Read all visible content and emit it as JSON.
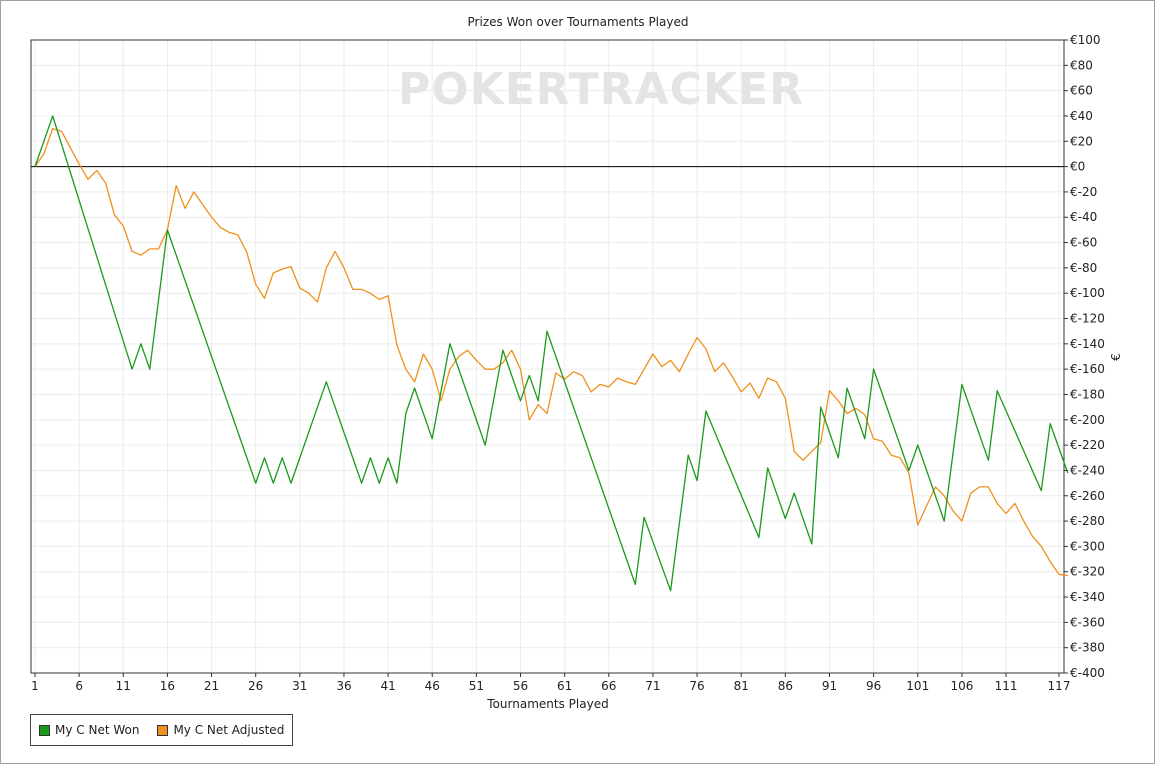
{
  "chart_data": {
    "type": "line",
    "title": "Prizes Won over Tournaments Played",
    "xlabel": "Tournaments Played",
    "ylabel": "€",
    "watermark": "POKERTRACKER",
    "xlim": [
      1,
      117
    ],
    "ylim": [
      -400,
      100
    ],
    "xticks": [
      1,
      6,
      11,
      16,
      21,
      26,
      31,
      36,
      41,
      46,
      51,
      56,
      61,
      66,
      71,
      76,
      81,
      86,
      91,
      96,
      101,
      106,
      111,
      117
    ],
    "yticks": [
      100,
      80,
      60,
      40,
      20,
      0,
      -20,
      -40,
      -60,
      -80,
      -100,
      -120,
      -140,
      -160,
      -180,
      -200,
      -220,
      -240,
      -260,
      -280,
      -300,
      -320,
      -340,
      -360,
      -380,
      -400
    ],
    "ytick_labels": [
      "€100",
      "€80",
      "€60",
      "€40",
      "€20",
      "€0",
      "€-20",
      "€-40",
      "€-60",
      "€-80",
      "€-100",
      "€-120",
      "€-140",
      "€-160",
      "€-180",
      "€-200",
      "€-220",
      "€-240",
      "€-260",
      "€-280",
      "€-300",
      "€-320",
      "€-340",
      "€-360",
      "€-380",
      "€-400"
    ],
    "grid": true,
    "legend_position": "bottom-left",
    "series": [
      {
        "name": "My C Net Won",
        "color": "#1a9a1a",
        "x": [
          1,
          3,
          12,
          13,
          14,
          16,
          26,
          27,
          28,
          29,
          30,
          34,
          38,
          39,
          40,
          41,
          42,
          43,
          44,
          46,
          48,
          52,
          54,
          56,
          57,
          58,
          59,
          69,
          70,
          73,
          75,
          76,
          77,
          83,
          84,
          86,
          87,
          89,
          90,
          92,
          93,
          95,
          96,
          100,
          101,
          104,
          106,
          109,
          110,
          115,
          116,
          118
        ],
        "y": [
          0,
          40,
          -160,
          -140,
          -160,
          -50,
          -250,
          -230,
          -250,
          -230,
          -250,
          -170,
          -250,
          -230,
          -250,
          -230,
          -250,
          -195,
          -175,
          -215,
          -140,
          -220,
          -145,
          -185,
          -165,
          -185,
          -130,
          -330,
          -277,
          -335,
          -228,
          -248,
          -193,
          -293,
          -238,
          -278,
          -258,
          -298,
          -190,
          -230,
          -175,
          -215,
          -160,
          -240,
          -220,
          -280,
          -172,
          -232,
          -177,
          -256,
          -203,
          -242
        ]
      },
      {
        "name": "My C Net Adjusted",
        "color": "#f0901c",
        "x": [
          1,
          2,
          3,
          4,
          5,
          6,
          7,
          8,
          9,
          10,
          11,
          12,
          13,
          14,
          15,
          16,
          17,
          18,
          19,
          20,
          21,
          22,
          23,
          24,
          25,
          26,
          27,
          28,
          29,
          30,
          31,
          32,
          33,
          34,
          35,
          36,
          37,
          38,
          39,
          40,
          41,
          42,
          43,
          44,
          45,
          46,
          47,
          48,
          49,
          50,
          51,
          52,
          53,
          54,
          55,
          56,
          57,
          58,
          59,
          60,
          61,
          62,
          63,
          64,
          65,
          66,
          67,
          68,
          69,
          70,
          71,
          72,
          73,
          74,
          75,
          76,
          77,
          78,
          79,
          80,
          81,
          82,
          83,
          84,
          85,
          86,
          87,
          88,
          89,
          90,
          91,
          92,
          93,
          94,
          95,
          96,
          97,
          98,
          99,
          100,
          101,
          102,
          103,
          104,
          105,
          106,
          107,
          108,
          109,
          110,
          111,
          112,
          113,
          114,
          115,
          116,
          117,
          118
        ],
        "y": [
          0,
          10,
          30,
          28,
          15,
          2,
          -10,
          -3,
          -13,
          -38,
          -47,
          -67,
          -70,
          -65,
          -65,
          -50,
          -15,
          -33,
          -20,
          -30,
          -40,
          -48,
          -52,
          -54,
          -68,
          -93,
          -104,
          -84,
          -81,
          -79,
          -96,
          -100,
          -107,
          -80,
          -67,
          -80,
          -97,
          -97,
          -100,
          -105,
          -102,
          -141,
          -160,
          -170,
          -148,
          -160,
          -185,
          -160,
          -150,
          -145,
          -153,
          -160,
          -160,
          -155,
          -145,
          -160,
          -200,
          -188,
          -195,
          -163,
          -168,
          -162,
          -165,
          -178,
          -172,
          -174,
          -167,
          -170,
          -172,
          -160,
          -148,
          -158,
          -153,
          -162,
          -148,
          -135,
          -144,
          -162,
          -155,
          -166,
          -178,
          -171,
          -183,
          -167,
          -170,
          -183,
          -225,
          -232,
          -225,
          -218,
          -177,
          -185,
          -195,
          -191,
          -196,
          -215,
          -217,
          -228,
          -230,
          -242,
          -283,
          -268,
          -253,
          -260,
          -272,
          -280,
          -258,
          -253,
          -253,
          -266,
          -274,
          -266,
          -280,
          -292,
          -300,
          -312,
          -322,
          -323
        ]
      }
    ]
  }
}
